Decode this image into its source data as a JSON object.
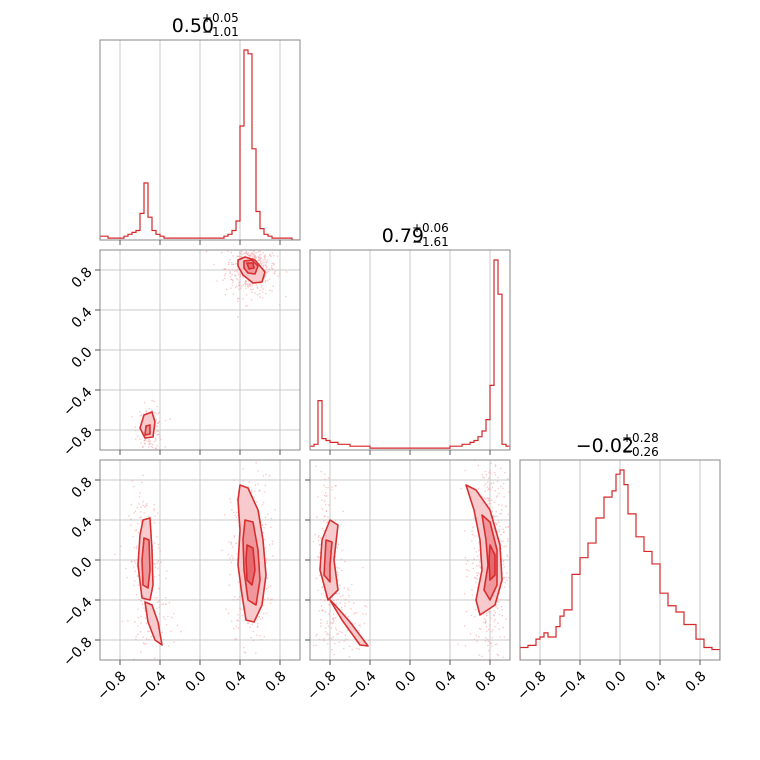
{
  "colors": {
    "accent": "#d62728",
    "fill_outer": "#f7c9cb",
    "fill_inner": "#ef9599",
    "scatter": "#f4a7ab"
  },
  "chart_data": {
    "type": "corner",
    "range": [
      -1.0,
      1.0
    ],
    "ticks": [
      -0.8,
      -0.4,
      0.0,
      0.4,
      0.8
    ],
    "tick_labels": [
      "−0.8",
      "−0.4",
      "0.0",
      "0.4",
      "0.8"
    ],
    "grid": true,
    "titles": [
      {
        "value": "0.50",
        "plus": "+0.05",
        "minus": "−1.01"
      },
      {
        "value": "0.79",
        "plus": "+0.06",
        "minus": "−1.61"
      },
      {
        "value": "−0.02",
        "plus": "+0.28",
        "minus": "−0.26"
      }
    ],
    "hist": [
      {
        "edges_range": [
          -1.0,
          1.0
        ],
        "bins": 50,
        "counts": [
          2,
          2,
          1,
          1,
          1,
          1,
          2,
          3,
          4,
          5,
          14,
          30,
          12,
          5,
          3,
          2,
          1,
          1,
          1,
          1,
          1,
          1,
          1,
          1,
          1,
          1,
          1,
          1,
          1,
          1,
          1,
          2,
          3,
          5,
          10,
          60,
          100,
          98,
          48,
          15,
          6,
          3,
          2,
          1,
          1,
          1,
          1,
          1,
          0,
          0
        ]
      },
      {
        "edges_range": [
          -1.0,
          1.0
        ],
        "bins": 50,
        "counts": [
          2,
          3,
          26,
          6,
          5,
          4,
          4,
          3,
          3,
          3,
          2,
          2,
          2,
          2,
          2,
          1,
          1,
          1,
          1,
          1,
          1,
          1,
          1,
          1,
          1,
          1,
          1,
          1,
          1,
          1,
          1,
          1,
          1,
          1,
          1,
          2,
          2,
          2,
          3,
          3,
          4,
          5,
          7,
          10,
          16,
          34,
          100,
          82,
          3,
          2
        ]
      },
      {
        "edges_range": [
          -1.0,
          1.0
        ],
        "bins": 50,
        "counts": [
          6,
          6,
          7,
          7,
          10,
          11,
          13,
          11,
          11,
          16,
          21,
          24,
          24,
          41,
          41,
          49,
          49,
          56,
          56,
          68,
          68,
          78,
          78,
          81,
          89,
          91,
          84,
          70,
          70,
          59,
          59,
          52,
          52,
          46,
          46,
          32,
          32,
          26,
          26,
          23,
          23,
          17,
          17,
          17,
          10,
          10,
          6,
          6,
          5,
          5
        ]
      }
    ],
    "pairs": [
      {
        "x": 0,
        "y": 1,
        "clusters": [
          {
            "cx": 0.51,
            "cy": 0.82,
            "sx": 0.08,
            "sy": 0.09,
            "n": 420
          },
          {
            "cx": -0.5,
            "cy": -0.78,
            "sx": 0.04,
            "sy": 0.07,
            "n": 140
          }
        ],
        "contours": [
          {
            "level": "outer",
            "points": [
              [
                0.38,
                0.9
              ],
              [
                0.45,
                0.93
              ],
              [
                0.55,
                0.9
              ],
              [
                0.65,
                0.78
              ],
              [
                0.62,
                0.68
              ],
              [
                0.53,
                0.67
              ],
              [
                0.43,
                0.75
              ],
              [
                0.38,
                0.84
              ]
            ]
          },
          {
            "level": "inner",
            "points": [
              [
                0.44,
                0.89
              ],
              [
                0.52,
                0.9
              ],
              [
                0.58,
                0.84
              ],
              [
                0.55,
                0.76
              ],
              [
                0.48,
                0.77
              ],
              [
                0.44,
                0.82
              ]
            ]
          },
          {
            "level": "core",
            "points": [
              [
                0.47,
                0.87
              ],
              [
                0.53,
                0.87
              ],
              [
                0.54,
                0.82
              ],
              [
                0.49,
                0.81
              ]
            ]
          },
          {
            "level": "outer",
            "points": [
              [
                -0.56,
                -0.65
              ],
              [
                -0.48,
                -0.62
              ],
              [
                -0.45,
                -0.72
              ],
              [
                -0.47,
                -0.87
              ],
              [
                -0.55,
                -0.88
              ],
              [
                -0.6,
                -0.78
              ]
            ]
          },
          {
            "level": "inner",
            "points": [
              [
                -0.54,
                -0.76
              ],
              [
                -0.5,
                -0.75
              ],
              [
                -0.5,
                -0.84
              ],
              [
                -0.55,
                -0.85
              ]
            ]
          }
        ]
      },
      {
        "x": 0,
        "y": 2,
        "clusters": [
          {
            "cx": 0.5,
            "cy": 0.0,
            "sx": 0.06,
            "sy": 0.26,
            "n": 420
          },
          {
            "cx": -0.55,
            "cy": 0.0,
            "sx": 0.05,
            "sy": 0.22,
            "n": 200
          },
          {
            "cx": -0.45,
            "cy": -0.6,
            "sx": 0.06,
            "sy": 0.1,
            "n": 60
          }
        ],
        "contours": [
          {
            "level": "outer",
            "points": [
              [
                0.4,
                0.75
              ],
              [
                0.48,
                0.72
              ],
              [
                0.58,
                0.5
              ],
              [
                0.63,
                0.2
              ],
              [
                0.66,
                -0.15
              ],
              [
                0.62,
                -0.45
              ],
              [
                0.54,
                -0.62
              ],
              [
                0.46,
                -0.6
              ],
              [
                0.42,
                -0.35
              ],
              [
                0.38,
                -0.05
              ],
              [
                0.4,
                0.3
              ],
              [
                0.38,
                0.6
              ]
            ]
          },
          {
            "level": "inner",
            "points": [
              [
                0.45,
                0.4
              ],
              [
                0.53,
                0.38
              ],
              [
                0.58,
                0.1
              ],
              [
                0.6,
                -0.2
              ],
              [
                0.56,
                -0.45
              ],
              [
                0.48,
                -0.4
              ],
              [
                0.44,
                -0.1
              ],
              [
                0.43,
                0.2
              ]
            ]
          },
          {
            "level": "core",
            "points": [
              [
                0.47,
                0.15
              ],
              [
                0.53,
                0.12
              ],
              [
                0.55,
                -0.1
              ],
              [
                0.52,
                -0.25
              ],
              [
                0.47,
                -0.2
              ],
              [
                0.46,
                0.0
              ]
            ]
          },
          {
            "level": "outer",
            "points": [
              [
                -0.57,
                0.4
              ],
              [
                -0.5,
                0.42
              ],
              [
                -0.48,
                0.1
              ],
              [
                -0.47,
                -0.25
              ],
              [
                -0.5,
                -0.4
              ],
              [
                -0.58,
                -0.38
              ],
              [
                -0.62,
                -0.05
              ],
              [
                -0.6,
                0.25
              ]
            ]
          },
          {
            "level": "inner",
            "points": [
              [
                -0.56,
                0.22
              ],
              [
                -0.51,
                0.2
              ],
              [
                -0.5,
                -0.1
              ],
              [
                -0.52,
                -0.28
              ],
              [
                -0.57,
                -0.25
              ],
              [
                -0.58,
                0.0
              ]
            ]
          },
          {
            "level": "outer",
            "points": [
              [
                -0.55,
                -0.42
              ],
              [
                -0.48,
                -0.45
              ],
              [
                -0.42,
                -0.62
              ],
              [
                -0.38,
                -0.85
              ],
              [
                -0.45,
                -0.8
              ],
              [
                -0.52,
                -0.62
              ]
            ]
          }
        ]
      },
      {
        "x": 1,
        "y": 2,
        "clusters": [
          {
            "cx": 0.8,
            "cy": 0.0,
            "sx": 0.06,
            "sy": 0.35,
            "n": 500
          },
          {
            "cx": -0.82,
            "cy": 0.0,
            "sx": 0.04,
            "sy": 0.3,
            "n": 220
          },
          {
            "cx": -0.65,
            "cy": -0.6,
            "sx": 0.07,
            "sy": 0.12,
            "n": 80
          }
        ],
        "contours": [
          {
            "level": "outer",
            "points": [
              [
                0.56,
                0.75
              ],
              [
                0.66,
                0.7
              ],
              [
                0.8,
                0.5
              ],
              [
                0.9,
                0.15
              ],
              [
                0.92,
                -0.2
              ],
              [
                0.85,
                -0.45
              ],
              [
                0.7,
                -0.55
              ],
              [
                0.66,
                -0.4
              ],
              [
                0.72,
                -0.1
              ],
              [
                0.7,
                0.2
              ],
              [
                0.64,
                0.5
              ]
            ]
          },
          {
            "level": "inner",
            "points": [
              [
                0.72,
                0.45
              ],
              [
                0.8,
                0.38
              ],
              [
                0.87,
                0.1
              ],
              [
                0.87,
                -0.25
              ],
              [
                0.8,
                -0.4
              ],
              [
                0.74,
                -0.3
              ],
              [
                0.78,
                -0.05
              ],
              [
                0.76,
                0.2
              ]
            ]
          },
          {
            "level": "core",
            "points": [
              [
                0.8,
                0.15
              ],
              [
                0.85,
                0.05
              ],
              [
                0.85,
                -0.15
              ],
              [
                0.8,
                -0.2
              ],
              [
                0.79,
                0.0
              ]
            ]
          },
          {
            "level": "outer",
            "points": [
              [
                -0.8,
                0.4
              ],
              [
                -0.72,
                0.35
              ],
              [
                -0.76,
                0.0
              ],
              [
                -0.72,
                -0.3
              ],
              [
                -0.82,
                -0.4
              ],
              [
                -0.9,
                -0.1
              ],
              [
                -0.88,
                0.2
              ]
            ]
          },
          {
            "level": "inner",
            "points": [
              [
                -0.84,
                0.2
              ],
              [
                -0.78,
                0.18
              ],
              [
                -0.8,
                -0.05
              ],
              [
                -0.8,
                -0.22
              ],
              [
                -0.86,
                -0.15
              ]
            ]
          },
          {
            "level": "outer",
            "points": [
              [
                -0.8,
                -0.4
              ],
              [
                -0.75,
                -0.45
              ],
              [
                -0.6,
                -0.62
              ],
              [
                -0.42,
                -0.86
              ],
              [
                -0.5,
                -0.85
              ],
              [
                -0.68,
                -0.6
              ]
            ]
          }
        ]
      }
    ]
  }
}
